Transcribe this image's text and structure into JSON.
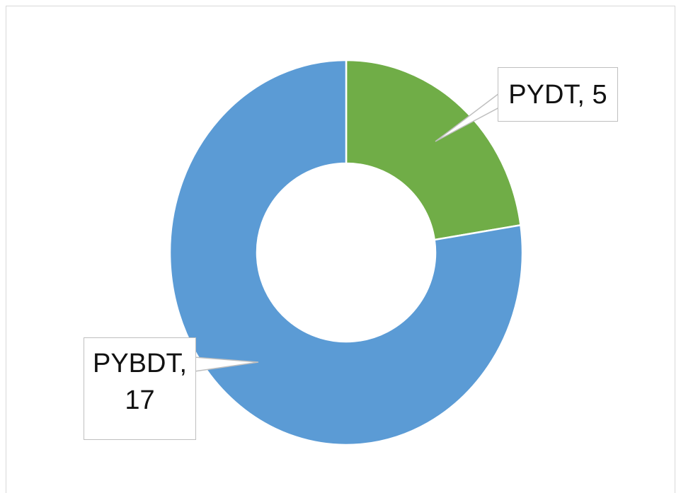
{
  "chart_data": {
    "type": "donut",
    "categories": [
      "PYDT",
      "PYBDT"
    ],
    "values": [
      5,
      17
    ],
    "value_labels": [
      "PYDT, 5",
      "PYBDT, 17"
    ],
    "colors": [
      "#70ad47",
      "#5b9bd5"
    ]
  }
}
